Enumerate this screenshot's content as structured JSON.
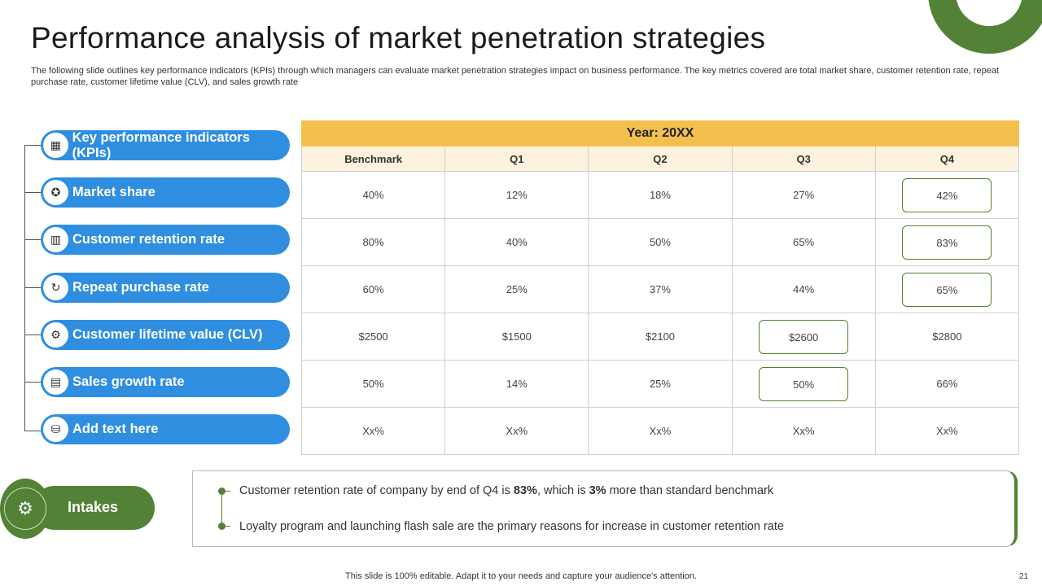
{
  "title": "Performance analysis of market penetration strategies",
  "subtitle": "The following slide outlines key performance indicators (KPIs) through which managers can evaluate market penetration strategies impact on business performance. The key metrics covered are total market share, customer retention rate, repeat purchase rate, customer lifetime value (CLV), and sales growth rate",
  "kpis": [
    {
      "label": "Key performance indicators (KPIs)",
      "icon": "briefcase-chart-icon",
      "glyph": "▦"
    },
    {
      "label": "Market share",
      "icon": "cart-icon",
      "glyph": "✪"
    },
    {
      "label": "Customer retention rate",
      "icon": "bar-chart-icon",
      "glyph": "▥"
    },
    {
      "label": "Repeat purchase rate",
      "icon": "refresh-icon",
      "glyph": "↻"
    },
    {
      "label": "Customer lifetime value (CLV)",
      "icon": "people-cycle-icon",
      "glyph": "⚙"
    },
    {
      "label": "Sales growth rate",
      "icon": "growth-chart-icon",
      "glyph": "▤"
    },
    {
      "label": "Add text here",
      "icon": "coins-icon",
      "glyph": "⛁"
    }
  ],
  "table": {
    "year_label": "Year: 20XX",
    "headers": [
      "Benchmark",
      "Q1",
      "Q2",
      "Q3",
      "Q4"
    ],
    "rows": [
      [
        "40%",
        "12%",
        "18%",
        "27%",
        "42%"
      ],
      [
        "80%",
        "40%",
        "50%",
        "65%",
        "83%"
      ],
      [
        "60%",
        "25%",
        "37%",
        "44%",
        "65%"
      ],
      [
        "$2500",
        "$1500",
        "$2100",
        "$2600",
        "$2800"
      ],
      [
        "50%",
        "14%",
        "25%",
        "50%",
        "66%"
      ],
      [
        "Xx%",
        "Xx%",
        "Xx%",
        "Xx%",
        "Xx%"
      ]
    ]
  },
  "intakes": {
    "label": "Intakes",
    "bullet1": {
      "pre": "Customer retention rate of company by end of Q4 is ",
      "b1": "83%",
      "mid": ", which is ",
      "b2": "3%",
      "post": " more than standard benchmark"
    },
    "bullet2": "Loyalty program and launching flash sale are the primary reasons for increase in customer retention rate"
  },
  "footer": "This slide is 100% editable. Adapt it to your needs and capture your audience's attention.",
  "page_number": "21",
  "colors": {
    "accent_green": "#538135",
    "pill_blue": "#2f8ee0",
    "year_gold": "#f3c04d"
  }
}
